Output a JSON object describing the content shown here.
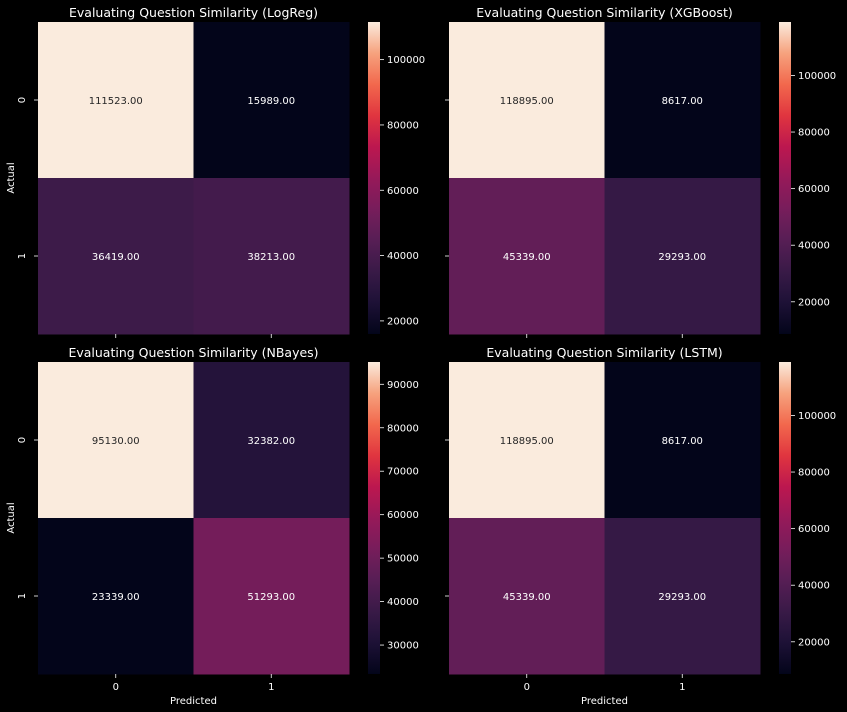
{
  "figure": {
    "background": "#000000",
    "colormap": "rocket"
  },
  "chart_data": [
    {
      "type": "heatmap",
      "title": "Evaluating Question Similarity (LogReg)",
      "xlabel": "",
      "ylabel": "Actual",
      "x_ticks": [
        "0",
        "1"
      ],
      "y_ticks": [
        "0",
        "1"
      ],
      "x_ticks_labeled": false,
      "values": [
        [
          111523.0,
          15989.0
        ],
        [
          36419.0,
          38213.0
        ]
      ],
      "cell_labels": [
        [
          "111523.00",
          "15989.00"
        ],
        [
          "36419.00",
          "38213.00"
        ]
      ],
      "colorbar_ticks": [
        "20000",
        "40000",
        "60000",
        "80000",
        "100000"
      ]
    },
    {
      "type": "heatmap",
      "title": "Evaluating Question Similarity (XGBoost)",
      "xlabel": "",
      "ylabel": "",
      "x_ticks": [
        "0",
        "1"
      ],
      "y_ticks": [
        "0",
        "1"
      ],
      "x_ticks_labeled": false,
      "y_ticks_labeled": false,
      "values": [
        [
          118895.0,
          8617.0
        ],
        [
          45339.0,
          29293.0
        ]
      ],
      "cell_labels": [
        [
          "118895.00",
          "8617.00"
        ],
        [
          "45339.00",
          "29293.00"
        ]
      ],
      "colorbar_ticks": [
        "20000",
        "40000",
        "60000",
        "80000",
        "100000"
      ]
    },
    {
      "type": "heatmap",
      "title": "Evaluating Question Similarity (NBayes)",
      "xlabel": "Predicted",
      "ylabel": "Actual",
      "x_ticks": [
        "0",
        "1"
      ],
      "y_ticks": [
        "0",
        "1"
      ],
      "values": [
        [
          95130.0,
          32382.0
        ],
        [
          23339.0,
          51293.0
        ]
      ],
      "cell_labels": [
        [
          "95130.00",
          "32382.00"
        ],
        [
          "23339.00",
          "51293.00"
        ]
      ],
      "colorbar_ticks": [
        "30000",
        "40000",
        "50000",
        "60000",
        "70000",
        "80000",
        "90000"
      ]
    },
    {
      "type": "heatmap",
      "title": "Evaluating Question Similarity (LSTM)",
      "xlabel": "Predicted",
      "ylabel": "",
      "x_ticks": [
        "0",
        "1"
      ],
      "y_ticks": [
        "0",
        "1"
      ],
      "y_ticks_labeled": false,
      "values": [
        [
          118895.0,
          8617.0
        ],
        [
          45339.0,
          29293.0
        ]
      ],
      "cell_labels": [
        [
          "118895.00",
          "8617.00"
        ],
        [
          "45339.00",
          "29293.00"
        ]
      ],
      "colorbar_ticks": [
        "20000",
        "40000",
        "60000",
        "80000",
        "100000"
      ]
    }
  ]
}
